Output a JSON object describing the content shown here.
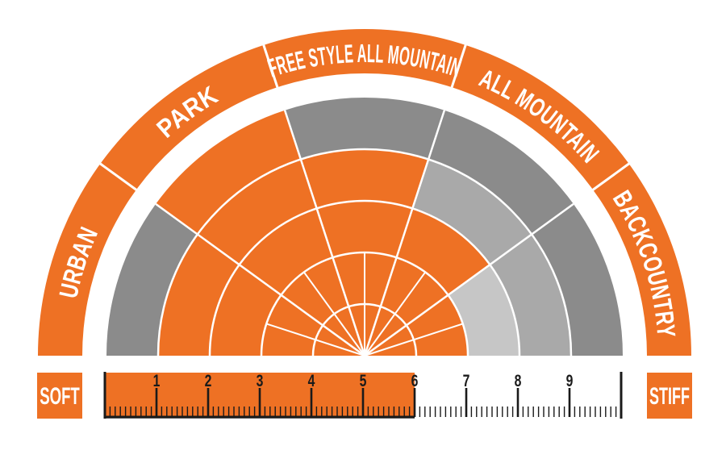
{
  "chart_data": {
    "type": "polar",
    "title": "",
    "categories": [
      "URBAN",
      "PARK",
      "FREE STYLE ALL MOUNTAIN",
      "ALL MOUNTAIN",
      "BACKCOUNTRY"
    ],
    "series": [
      {
        "name": "rings-filled-out-of-5",
        "values": [
          4,
          5,
          4,
          3,
          2
        ]
      }
    ],
    "rings_total": 5,
    "sector_angle_deg": 36,
    "legend_position": "none",
    "grid": true,
    "colors": {
      "filled": "#ee7124",
      "unfilled_ring_3": "#c6c6c6",
      "unfilled_ring_4": "#a9a9a9",
      "unfilled_ring_5": "#8b8b8b",
      "grid_line": "#ffffff"
    }
  },
  "flex_scale": {
    "left_label": "SOFT",
    "right_label": "STIFF",
    "numbers": [
      "1",
      "2",
      "3",
      "4",
      "5",
      "6",
      "7",
      "8",
      "9"
    ],
    "range_min": 0,
    "range_max": 10,
    "filled_to": 6,
    "minor_ticks_per_unit": 10,
    "fill_color": "#ee7124",
    "tick_color": "#1a1a1a"
  }
}
